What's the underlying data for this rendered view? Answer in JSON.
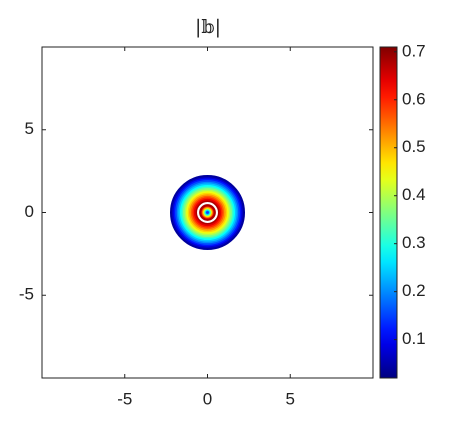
{
  "chart_data": {
    "type": "contour",
    "title": "|𝕓|",
    "levels": [
      0.68,
      0.64,
      0.6,
      0.56,
      0.52,
      0.48,
      0.44,
      0.4,
      0.36,
      0.32,
      0.28,
      0.24,
      0.2,
      0.16,
      0.12,
      0.08,
      0.04,
      0.12,
      0.2,
      0.28,
      0.36,
      0.44,
      0.52,
      0.6,
      0.68
    ],
    "radii": [
      0.7,
      0.79,
      0.89,
      0.98,
      1.07,
      1.17,
      1.26,
      1.36,
      1.45,
      1.55,
      1.64,
      1.73,
      1.83,
      1.92,
      2.02,
      2.11,
      2.2,
      0.08,
      0.13,
      0.18,
      0.23,
      0.28,
      0.33,
      0.39,
      0.44
    ],
    "xlim": [
      -10,
      10
    ],
    "ylim": [
      -10,
      10
    ],
    "xticks": [
      -5,
      0,
      5
    ],
    "yticks": [
      -5,
      0,
      5
    ],
    "colormap": "jet",
    "clim": [
      0.02,
      0.71
    ],
    "cticks": [
      0.1,
      0.2,
      0.3,
      0.4,
      0.5,
      0.6,
      0.7
    ]
  }
}
